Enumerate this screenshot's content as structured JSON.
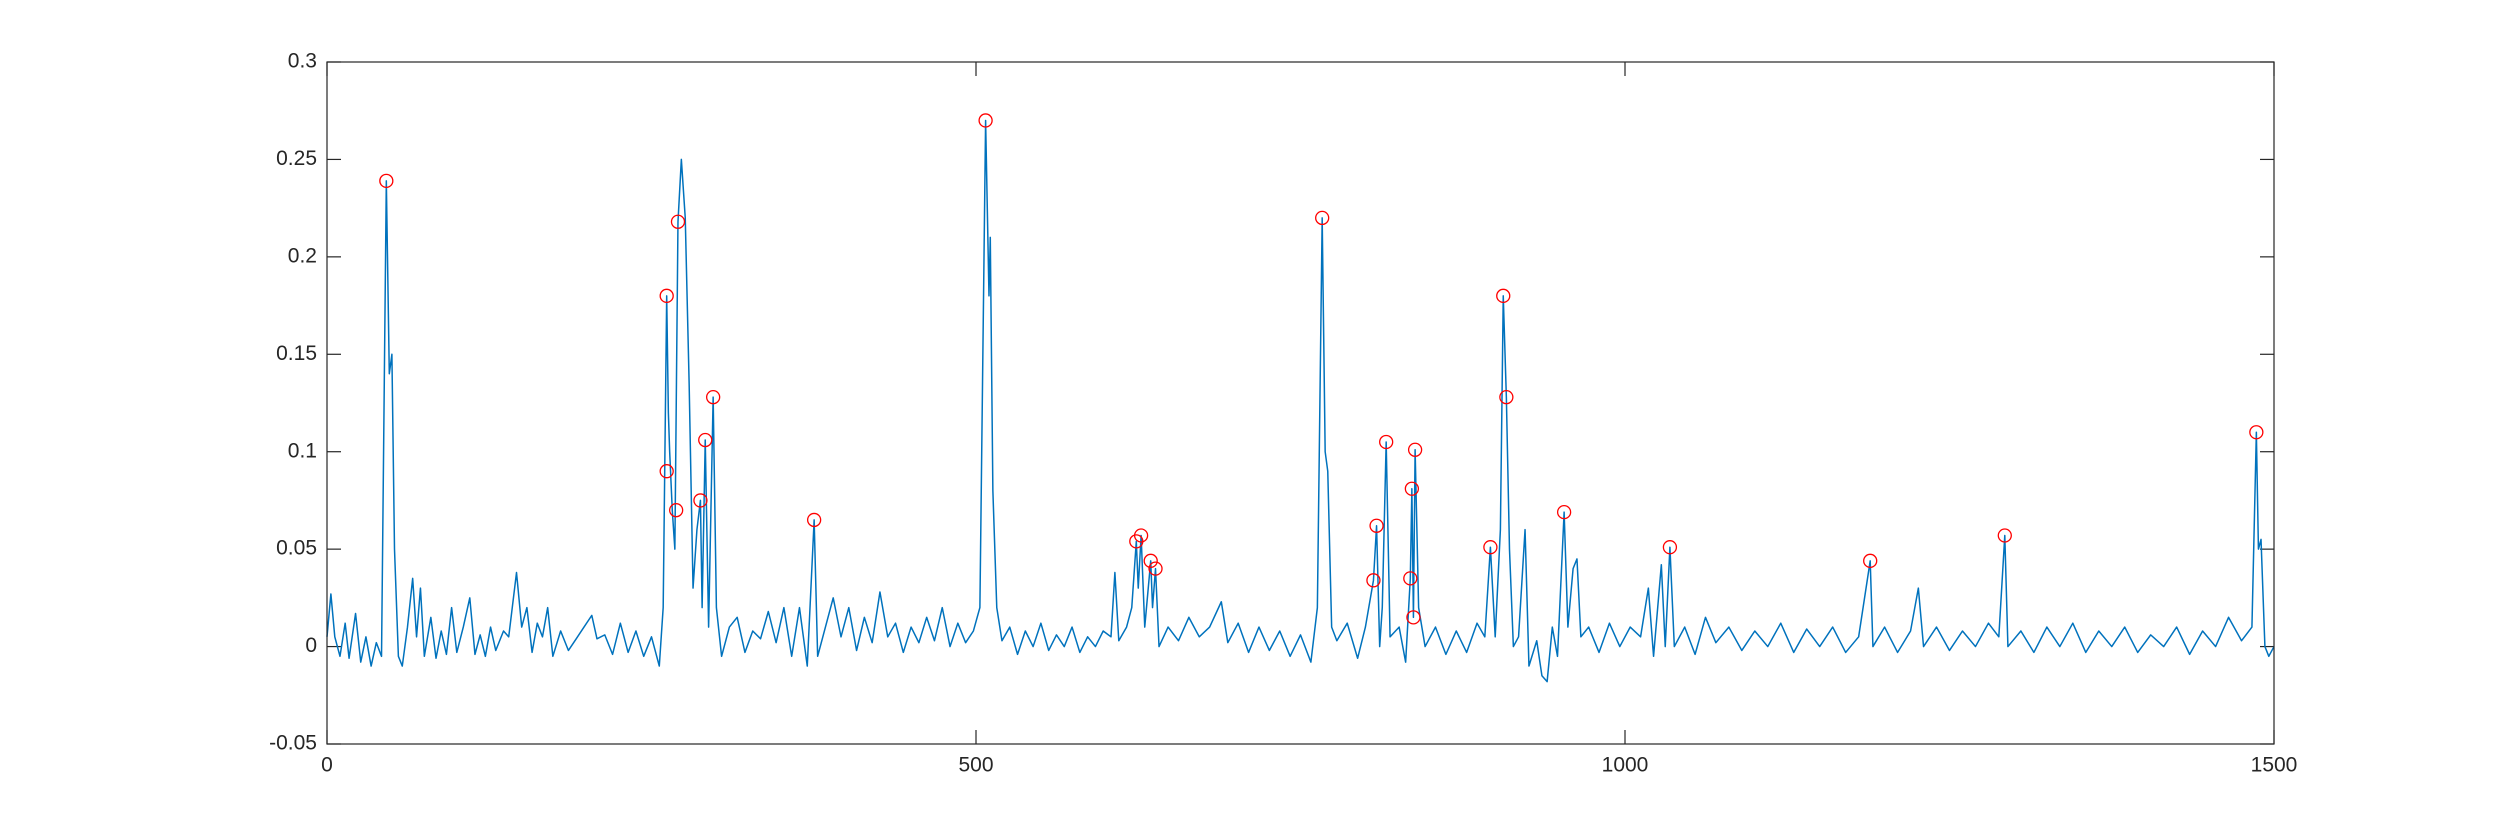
{
  "chart_data": {
    "type": "line",
    "xlim": [
      0,
      1500
    ],
    "xticks": [
      0,
      500,
      1000,
      1500
    ],
    "ylim": [
      -0.05,
      0.3
    ],
    "yticks": [
      -0.05,
      0,
      0.05,
      0.1,
      0.15,
      0.2,
      0.25,
      0.3
    ],
    "grid": false,
    "series": [
      {
        "type": "line",
        "color": "#0072bd",
        "x": [
          0,
          3,
          6,
          10,
          14,
          17,
          22,
          26,
          30,
          34,
          38,
          42,
          45.7,
          48,
          50,
          52,
          55,
          58,
          62,
          66,
          69,
          72,
          75,
          80,
          84,
          88,
          92,
          96,
          100,
          105,
          110,
          114,
          118,
          122,
          126,
          130,
          136,
          140,
          146,
          150,
          154,
          158,
          162,
          166,
          170,
          174,
          180,
          186,
          192,
          198,
          204,
          208,
          214,
          220,
          226,
          232,
          238,
          244,
          250,
          256,
          259,
          261.7,
          263,
          264,
          266,
          268,
          270.4,
          273,
          276,
          279,
          282,
          285,
          287.7,
          289,
          291.4,
          294,
          297.5,
          300,
          304,
          310,
          316,
          322,
          328,
          334,
          340,
          346,
          352,
          358,
          364,
          370,
          375.3,
          378,
          384,
          390,
          396,
          402,
          408,
          414,
          420,
          426,
          432,
          438,
          444,
          450,
          456,
          462,
          468,
          474,
          480,
          486,
          492,
          498,
          503,
          507.4,
          510,
          511,
          513,
          516,
          520,
          526,
          532,
          538,
          544,
          550,
          556,
          562,
          568,
          574,
          580,
          586,
          592,
          598,
          604,
          607,
          610,
          616,
          620,
          623.5,
          625,
          627.2,
          630,
          634.6,
          636,
          638.3,
          641,
          648,
          656,
          664,
          672,
          680,
          689,
          694,
          702,
          710,
          718,
          726,
          734,
          742,
          750,
          758,
          763,
          766.7,
          769,
          771,
          774,
          778,
          786,
          794,
          800,
          806.2,
          808.6,
          811,
          813,
          816,
          819,
          826,
          831,
          834.6,
          835.8,
          837,
          838.3,
          841,
          846,
          854,
          862,
          870,
          878,
          886,
          892,
          896.3,
          900,
          904,
          906.2,
          908.6,
          911,
          914,
          918,
          923,
          926,
          932,
          936,
          940,
          944,
          948,
          953.1,
          956,
          960,
          963,
          966,
          972,
          980,
          988,
          996,
          1004,
          1012,
          1018,
          1022,
          1028,
          1031,
          1034.6,
          1038,
          1046,
          1054,
          1062,
          1070,
          1080,
          1090,
          1100,
          1110,
          1120,
          1130,
          1140,
          1150,
          1160,
          1170,
          1180,
          1188.9,
          1191,
          1200,
          1210,
          1220,
          1226,
          1230,
          1240,
          1250,
          1260,
          1270,
          1280,
          1288,
          1292.6,
          1295,
          1305,
          1315,
          1325,
          1335,
          1345,
          1355,
          1365,
          1375,
          1385,
          1395,
          1405,
          1415,
          1425,
          1435,
          1445,
          1455,
          1465,
          1475,
          1483,
          1486.4,
          1488,
          1490,
          1493,
          1496,
          1500
        ],
        "values": [
          0.005,
          0.027,
          0.005,
          -0.005,
          0.012,
          -0.006,
          0.017,
          -0.008,
          0.005,
          -0.01,
          0.002,
          -0.005,
          0.239,
          0.14,
          0.15,
          0.05,
          -0.005,
          -0.01,
          0.01,
          0.035,
          0.005,
          0.03,
          -0.005,
          0.015,
          -0.006,
          0.008,
          -0.004,
          0.02,
          -0.003,
          0.01,
          0.025,
          -0.004,
          0.006,
          -0.005,
          0.01,
          -0.002,
          0.008,
          0.005,
          0.038,
          0.01,
          0.02,
          -0.003,
          0.012,
          0.005,
          0.02,
          -0.005,
          0.008,
          -0.002,
          0.004,
          0.01,
          0.016,
          0.004,
          0.006,
          -0.004,
          0.012,
          -0.003,
          0.008,
          -0.005,
          0.005,
          -0.01,
          0.02,
          0.18,
          0.12,
          0.1,
          0.07,
          0.05,
          0.218,
          0.25,
          0.22,
          0.135,
          0.03,
          0.06,
          0.075,
          0.02,
          0.106,
          0.01,
          0.128,
          0.02,
          -0.005,
          0.01,
          0.015,
          -0.003,
          0.008,
          0.004,
          0.018,
          0.002,
          0.02,
          -0.005,
          0.02,
          -0.01,
          0.065,
          -0.005,
          0.01,
          0.025,
          0.005,
          0.02,
          -0.002,
          0.015,
          0.002,
          0.028,
          0.005,
          0.012,
          -0.003,
          0.01,
          0.002,
          0.015,
          0.003,
          0.02,
          0,
          0.012,
          0.002,
          0.008,
          0.02,
          0.27,
          0.18,
          0.21,
          0.08,
          0.02,
          0.003,
          0.01,
          -0.004,
          0.008,
          0,
          0.012,
          -0.002,
          0.006,
          0,
          0.01,
          -0.003,
          0.005,
          0,
          0.008,
          0.005,
          0.038,
          0.003,
          0.01,
          0.02,
          0.054,
          0.03,
          0.057,
          0.01,
          0.044,
          0.02,
          0.04,
          0,
          0.01,
          0.003,
          0.015,
          0.005,
          0.01,
          0.023,
          0.002,
          0.012,
          -0.003,
          0.01,
          -0.002,
          0.008,
          -0.005,
          0.006,
          -0.008,
          0.02,
          0.22,
          0.1,
          0.09,
          0.01,
          0.003,
          0.012,
          -0.006,
          0.01,
          0.034,
          0.062,
          0,
          0.02,
          0.105,
          0.005,
          0.01,
          -0.008,
          0.035,
          0.081,
          0.015,
          0.101,
          0.02,
          0,
          0.01,
          -0.004,
          0.008,
          -0.003,
          0.012,
          0.005,
          0.051,
          0.005,
          0.06,
          0.18,
          0.128,
          0.05,
          0,
          0.005,
          0.06,
          -0.01,
          0.003,
          -0.015,
          -0.018,
          0.01,
          -0.005,
          0.069,
          0.01,
          0.04,
          0.045,
          0.005,
          0.01,
          -0.003,
          0.012,
          0,
          0.01,
          0.005,
          0.03,
          -0.005,
          0.042,
          0,
          0.051,
          0,
          0.01,
          -0.004,
          0.015,
          0.002,
          0.01,
          -0.002,
          0.008,
          0,
          0.012,
          -0.003,
          0.009,
          0,
          0.01,
          -0.003,
          0.005,
          0.044,
          0,
          0.01,
          -0.003,
          0.008,
          0.03,
          0,
          0.01,
          -0.002,
          0.008,
          0,
          0.012,
          0.005,
          0.057,
          0,
          0.008,
          -0.003,
          0.01,
          0,
          0.012,
          -0.003,
          0.008,
          0,
          0.01,
          -0.003,
          0.006,
          0,
          0.01,
          -0.004,
          0.008,
          0,
          0.015,
          0.003,
          0.01,
          0.11,
          0.05,
          0.055,
          0,
          -0.005,
          0
        ]
      },
      {
        "type": "scatter",
        "color": "#ff0000",
        "x": [
          45.7,
          261.7,
          261.7,
          270.4,
          269,
          287.7,
          291.4,
          297.5,
          375.3,
          507.4,
          623.5,
          627.2,
          634.6,
          638.3,
          766.7,
          806.2,
          808.6,
          816,
          834.6,
          835.8,
          837,
          838.3,
          896.3,
          906.2,
          908.6,
          953.1,
          1034.6,
          1188.9,
          1292.6,
          1486.4
        ],
        "values": [
          0.239,
          0.18,
          0.09,
          0.218,
          0.07,
          0.075,
          0.106,
          0.128,
          0.065,
          0.27,
          0.054,
          0.057,
          0.044,
          0.04,
          0.22,
          0.034,
          0.062,
          0.105,
          0.035,
          0.081,
          0.015,
          0.101,
          0.051,
          0.18,
          0.128,
          0.069,
          0.051,
          0.044,
          0.057,
          0.11
        ]
      }
    ]
  }
}
